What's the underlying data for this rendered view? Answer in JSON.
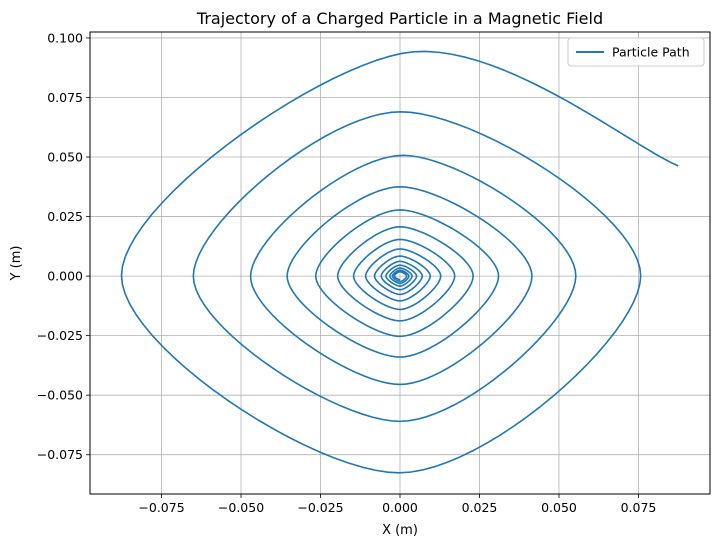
{
  "chart_data": {
    "type": "line",
    "title": "Trajectory of a Charged Particle in a Magnetic Field",
    "xlabel": "X (m)",
    "ylabel": "Y (m)",
    "xlim": [
      -0.0975,
      0.0975
    ],
    "ylim": [
      -0.0915,
      0.1025
    ],
    "xticks": [
      -0.075,
      -0.05,
      -0.025,
      0.0,
      0.025,
      0.05,
      0.075
    ],
    "xtick_labels": [
      "−0.075",
      "−0.050",
      "−0.025",
      "0.000",
      "0.025",
      "0.050",
      "0.075"
    ],
    "yticks": [
      -0.075,
      -0.05,
      -0.025,
      0.0,
      0.025,
      0.05,
      0.075,
      0.1
    ],
    "ytick_labels": [
      "−0.075",
      "−0.050",
      "−0.025",
      "0.000",
      "0.025",
      "0.050",
      "0.075",
      "0.100"
    ],
    "grid": true,
    "legend_position": "top-right",
    "series": [
      {
        "name": "Particle Path",
        "color": "#1f77b4",
        "points": [
          [
            0.0875,
            0.0463
          ],
          [
            0.0005,
            0.0935
          ],
          [
            -0.0876,
            0.0003
          ],
          [
            -0.0003,
            -0.0826
          ],
          [
            0.0757,
            0.0001
          ],
          [
            0.0002,
            0.069
          ],
          [
            -0.065,
            0.0
          ],
          [
            0.0,
            -0.061
          ],
          [
            0.0553,
            0.0
          ],
          [
            0.001,
            0.0507
          ],
          [
            -0.047,
            0.0
          ],
          [
            0.0,
            -0.0455
          ],
          [
            0.0415,
            0.0
          ],
          [
            0.0,
            0.0375
          ],
          [
            -0.0355,
            0.0
          ],
          [
            0.0,
            -0.034
          ],
          [
            0.031,
            0.0
          ],
          [
            0.0,
            0.0278
          ],
          [
            -0.0265,
            0.0
          ],
          [
            0.0,
            -0.0253
          ],
          [
            0.023,
            0.0
          ],
          [
            0.0,
            0.0207
          ],
          [
            -0.0196,
            0.0
          ],
          [
            0.0,
            -0.0188
          ],
          [
            0.0172,
            0.0
          ],
          [
            0.0,
            0.0154
          ],
          [
            -0.0146,
            0.0
          ],
          [
            0.0,
            -0.014
          ],
          [
            0.0128,
            0.0
          ],
          [
            0.0,
            0.0114
          ],
          [
            -0.0108,
            0.0
          ],
          [
            0.0,
            -0.0104
          ],
          [
            0.0095,
            0.0
          ],
          [
            0.0,
            0.0084
          ],
          [
            -0.008,
            0.0
          ],
          [
            0.0,
            -0.0077
          ],
          [
            0.007,
            0.0
          ],
          [
            0.0,
            0.0062
          ],
          [
            -0.0059,
            0.0
          ],
          [
            0.0,
            -0.0057
          ],
          [
            0.0052,
            0.0
          ],
          [
            0.0,
            0.0046
          ],
          [
            -0.0044,
            0.0
          ],
          [
            0.0,
            -0.0042
          ],
          [
            0.0038,
            0.0
          ],
          [
            0.0,
            0.0034
          ],
          [
            -0.0032,
            0.0
          ],
          [
            0.0,
            -0.0031
          ],
          [
            0.0028,
            0.0
          ],
          [
            0.0,
            0.0025
          ],
          [
            -0.0024,
            0.0
          ],
          [
            0.0,
            -0.0023
          ],
          [
            0.0021,
            0.0
          ],
          [
            0.0,
            0.0018
          ],
          [
            -0.0018,
            0.0
          ],
          [
            0.0,
            -0.0017
          ]
        ]
      }
    ]
  }
}
